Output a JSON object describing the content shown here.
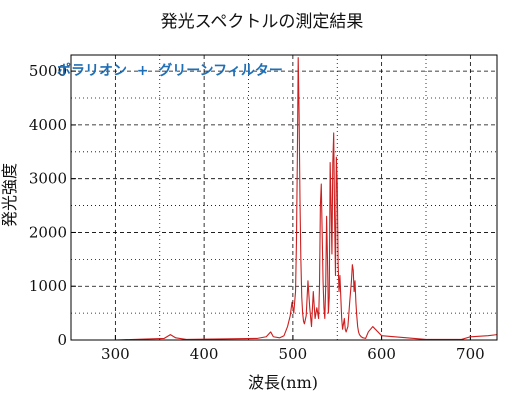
{
  "chart_data": {
    "type": "line",
    "title": "発光スペクトルの測定結果",
    "annotation": "ポラリオン  +  グリーンフィルター",
    "annotation_color": "#1f6fb6",
    "series_color": "#cc1f1f",
    "xlabel": "波長(nm)",
    "ylabel": "発光強度",
    "xlim": [
      250,
      730
    ],
    "ylim": [
      0,
      5300
    ],
    "xticks": [
      300,
      400,
      500,
      600,
      700
    ],
    "yticks": [
      0,
      1000,
      2000,
      3000,
      4000,
      5000
    ],
    "grid": true,
    "series": [
      {
        "x": [
          250,
          300,
          355,
          362,
          368,
          380,
          420,
          460,
          470,
          475,
          478,
          485,
          490,
          494,
          497,
          499,
          501,
          503,
          504,
          505,
          506,
          507,
          508,
          509,
          510,
          511,
          512,
          513,
          515,
          517,
          519,
          521,
          523,
          525,
          527,
          529,
          530,
          531,
          532,
          533,
          534,
          535,
          536,
          537,
          538,
          539,
          540,
          541,
          542,
          543,
          544,
          545,
          546,
          547,
          548,
          549,
          550,
          551,
          552,
          553,
          554,
          555,
          556,
          557,
          558,
          559,
          560,
          562,
          564,
          566,
          567,
          568,
          569,
          570,
          571,
          572,
          573,
          574,
          575,
          577,
          579,
          582,
          585,
          590,
          600,
          650,
          690,
          700,
          720,
          730
        ],
        "y": [
          0,
          0,
          30,
          100,
          40,
          10,
          20,
          30,
          60,
          150,
          60,
          40,
          80,
          250,
          450,
          700,
          500,
          900,
          1800,
          3300,
          5250,
          4200,
          2600,
          1500,
          800,
          500,
          350,
          300,
          450,
          1100,
          600,
          250,
          900,
          400,
          600,
          400,
          1000,
          2500,
          2900,
          2000,
          1100,
          600,
          400,
          1000,
          2300,
          1500,
          500,
          800,
          3300,
          2500,
          1600,
          3300,
          3850,
          2300,
          1200,
          3400,
          2900,
          1400,
          900,
          1200,
          800,
          400,
          200,
          300,
          400,
          200,
          150,
          250,
          700,
          1100,
          1400,
          1300,
          900,
          1100,
          700,
          450,
          250,
          150,
          100,
          60,
          40,
          30,
          150,
          250,
          80,
          10,
          10,
          60,
          80,
          100
        ]
      }
    ]
  }
}
